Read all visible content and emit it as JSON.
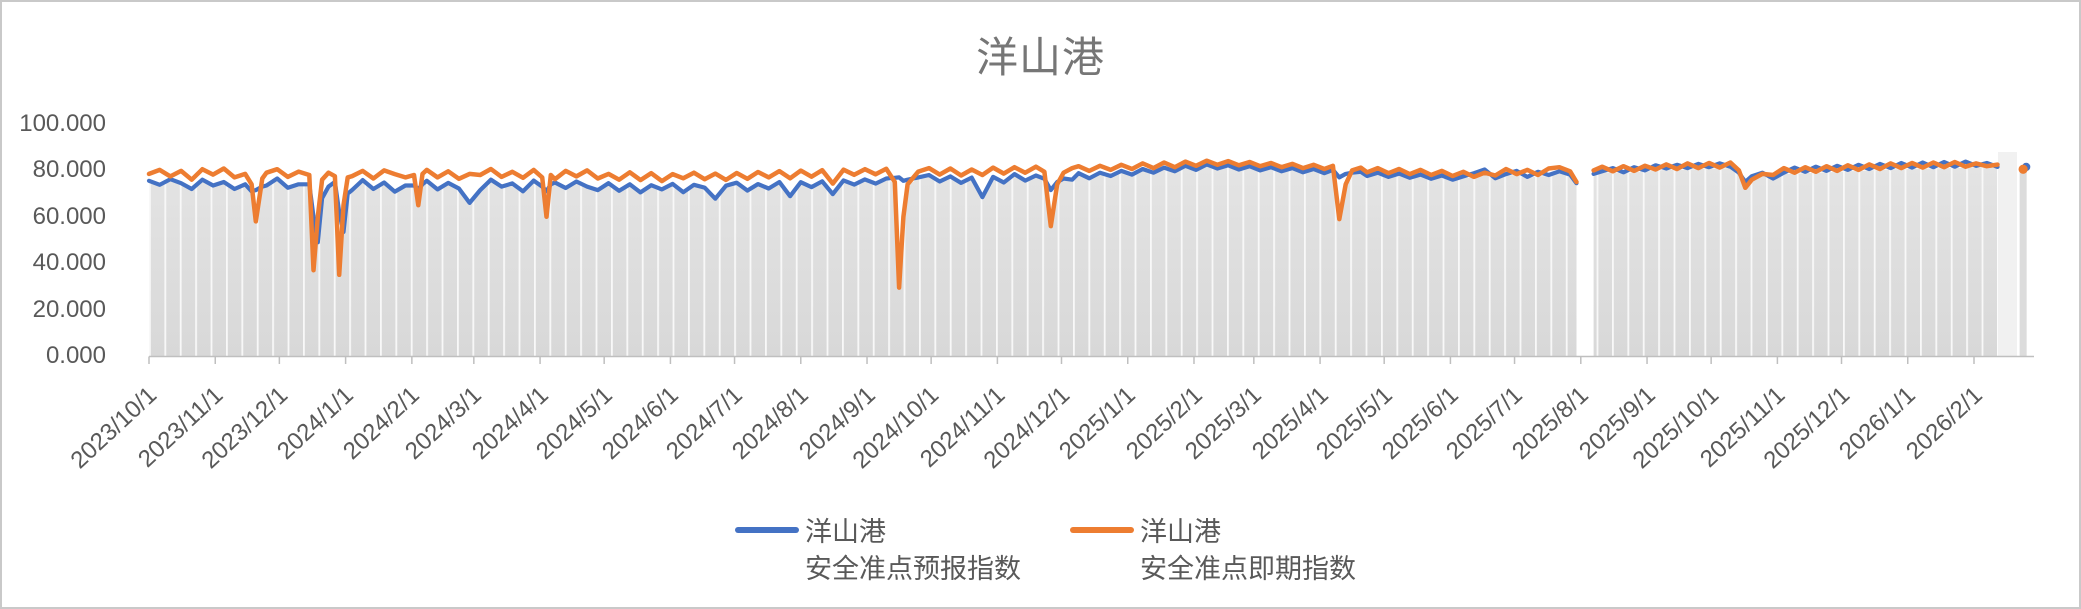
{
  "title": "洋山港",
  "colors": {
    "forecast_blue": "#4472C4",
    "spot_orange": "#ED7D31",
    "title_text": "#767676",
    "axis_text": "#595959",
    "axis_line": "#bfbfbf",
    "area_fill_top": "#e6e6e6",
    "area_fill_bottom": "#d8d8d8",
    "area_stripe": "#f8f8f8",
    "trailing_band": "#f1f1f1",
    "frame_border": "#c9c9c9"
  },
  "chart_data": {
    "type": "line",
    "title": "洋山港",
    "xlabel": "",
    "ylabel": "",
    "ylim": [
      0,
      100
    ],
    "grid": "none",
    "legend_position": "bottom",
    "y_ticks": [
      {
        "label": "0.000",
        "value": 0
      },
      {
        "label": "20.000",
        "value": 20
      },
      {
        "label": "40.000",
        "value": 40
      },
      {
        "label": "60.000",
        "value": 60
      },
      {
        "label": "80.000",
        "value": 80
      },
      {
        "label": "100.000",
        "value": 100
      }
    ],
    "x_ticks": [
      {
        "label": "2023/10/1",
        "day": 0
      },
      {
        "label": "2023/11/1",
        "day": 31
      },
      {
        "label": "2023/12/1",
        "day": 61
      },
      {
        "label": "2024/1/1",
        "day": 92
      },
      {
        "label": "2024/2/1",
        "day": 123
      },
      {
        "label": "2024/3/1",
        "day": 152
      },
      {
        "label": "2024/4/1",
        "day": 183
      },
      {
        "label": "2024/5/1",
        "day": 213
      },
      {
        "label": "2024/6/1",
        "day": 244
      },
      {
        "label": "2024/7/1",
        "day": 274
      },
      {
        "label": "2024/8/1",
        "day": 305
      },
      {
        "label": "2024/9/1",
        "day": 336
      },
      {
        "label": "2024/10/1",
        "day": 366
      },
      {
        "label": "2024/11/1",
        "day": 397
      },
      {
        "label": "2024/12/1",
        "day": 427
      },
      {
        "label": "2025/1/1",
        "day": 458
      },
      {
        "label": "2025/2/1",
        "day": 489
      },
      {
        "label": "2025/3/1",
        "day": 517
      },
      {
        "label": "2025/4/1",
        "day": 548
      },
      {
        "label": "2025/5/1",
        "day": 578
      },
      {
        "label": "2025/6/1",
        "day": 609
      },
      {
        "label": "2025/7/1",
        "day": 639
      },
      {
        "label": "2025/8/1",
        "day": 670
      },
      {
        "label": "2025/9/1",
        "day": 701
      },
      {
        "label": "2025/10/1",
        "day": 731
      },
      {
        "label": "2025/11/1",
        "day": 762
      },
      {
        "label": "2025/12/1",
        "day": 792
      },
      {
        "label": "2026/1/1",
        "day": 823
      },
      {
        "label": "2026/2/1",
        "day": 854
      }
    ],
    "legend": [
      {
        "line1": "洋山港",
        "line2": "安全准点预报指数",
        "color": "#4472C4"
      },
      {
        "line1": "洋山港",
        "line2": "安全准点即期指数",
        "color": "#ED7D31"
      }
    ],
    "series_names": [
      "洋山港 安全准点预报指数",
      "洋山港 安全准点即期指数"
    ],
    "rows_format": [
      "day_since_2023_10_01",
      "forecast_index_blue",
      "spot_index_orange"
    ],
    "rows": [
      [
        0,
        75.5,
        78.5
      ],
      [
        5,
        73.8,
        80.2
      ],
      [
        10,
        76.2,
        77.4
      ],
      [
        15,
        74.5,
        79.8
      ],
      [
        20,
        72,
        76
      ],
      [
        25,
        76,
        80.5
      ],
      [
        30,
        73.5,
        78.2
      ],
      [
        35,
        75,
        80.8
      ],
      [
        40,
        72,
        77
      ],
      [
        45,
        74,
        78.5
      ],
      [
        48,
        71,
        74
      ],
      [
        50,
        71.5,
        58
      ],
      [
        53,
        73,
        76.5
      ],
      [
        55,
        73.5,
        79
      ],
      [
        60,
        76.5,
        80.5
      ],
      [
        65,
        72.5,
        77.2
      ],
      [
        70,
        74,
        79.5
      ],
      [
        75,
        74,
        78
      ],
      [
        77,
        60,
        37
      ],
      [
        79,
        49,
        60
      ],
      [
        81,
        68,
        76
      ],
      [
        84,
        73,
        79
      ],
      [
        87,
        75,
        77.5
      ],
      [
        89,
        62,
        35
      ],
      [
        91,
        53.5,
        65
      ],
      [
        93,
        70,
        77
      ],
      [
        95,
        71.5,
        77.5
      ],
      [
        100,
        75.8,
        79.8
      ],
      [
        105,
        72,
        76.5
      ],
      [
        110,
        74.8,
        80
      ],
      [
        115,
        70.8,
        78.4
      ],
      [
        120,
        73.5,
        77
      ],
      [
        124,
        73.5,
        78
      ],
      [
        126,
        72,
        65
      ],
      [
        128,
        74,
        78.5
      ],
      [
        130,
        75.5,
        80.2
      ],
      [
        135,
        71.8,
        77
      ],
      [
        140,
        74.6,
        79.6
      ],
      [
        145,
        72.2,
        76.4
      ],
      [
        150,
        66,
        78.5
      ],
      [
        155,
        71.5,
        78
      ],
      [
        160,
        76,
        80.6
      ],
      [
        165,
        73,
        77.2
      ],
      [
        170,
        74.4,
        79.4
      ],
      [
        175,
        71,
        76.8
      ],
      [
        180,
        75.6,
        80.2
      ],
      [
        184,
        73,
        77
      ],
      [
        186,
        71,
        60
      ],
      [
        188,
        74,
        78
      ],
      [
        190,
        74.8,
        76.2
      ],
      [
        195,
        72.4,
        79.8
      ],
      [
        200,
        75.2,
        77.4
      ],
      [
        205,
        73,
        80
      ],
      [
        210,
        71.5,
        76.5
      ],
      [
        215,
        74.5,
        78.5
      ],
      [
        220,
        71.2,
        76
      ],
      [
        225,
        74,
        79.2
      ],
      [
        230,
        70.5,
        75.8
      ],
      [
        235,
        73.6,
        78.8
      ],
      [
        240,
        71.8,
        75.4
      ],
      [
        245,
        74.2,
        78.4
      ],
      [
        250,
        70.6,
        76.6
      ],
      [
        255,
        73.8,
        79
      ],
      [
        260,
        72.6,
        76.2
      ],
      [
        265,
        67.8,
        78.6
      ],
      [
        270,
        73.4,
        75.9
      ],
      [
        275,
        74.7,
        78.9
      ],
      [
        280,
        71.3,
        76.4
      ],
      [
        285,
        74.1,
        79.3
      ],
      [
        290,
        72.2,
        77
      ],
      [
        295,
        75,
        79.7
      ],
      [
        300,
        68.9,
        76.6
      ],
      [
        305,
        74.9,
        79.9
      ],
      [
        310,
        72.8,
        77.3
      ],
      [
        315,
        75.3,
        80.1
      ],
      [
        320,
        69.8,
        74.3
      ],
      [
        325,
        75.7,
        80.3
      ],
      [
        330,
        73.9,
        78.1
      ],
      [
        335,
        76.1,
        80.5
      ],
      [
        340,
        74.3,
        78.3
      ],
      [
        345,
        76.5,
        80.7
      ],
      [
        349,
        76.8,
        75
      ],
      [
        351,
        77,
        29.5
      ],
      [
        353,
        75.5,
        60
      ],
      [
        355,
        76,
        74
      ],
      [
        360,
        77,
        79.5
      ],
      [
        365,
        78,
        81
      ],
      [
        370,
        75.2,
        78.2
      ],
      [
        375,
        77.4,
        80.8
      ],
      [
        380,
        74.6,
        77.8
      ],
      [
        385,
        76.9,
        80.4
      ],
      [
        390,
        68.5,
        78
      ],
      [
        395,
        77.2,
        81.2
      ],
      [
        400,
        74.8,
        78.6
      ],
      [
        405,
        78.4,
        81.4
      ],
      [
        410,
        75.6,
        79
      ],
      [
        415,
        77.8,
        81.6
      ],
      [
        419,
        76.4,
        79.4
      ],
      [
        422,
        71.5,
        56
      ],
      [
        425,
        75,
        74
      ],
      [
        428,
        76.5,
        79
      ],
      [
        432,
        76,
        81
      ],
      [
        435,
        78.8,
        81.8
      ],
      [
        440,
        76.6,
        79.8
      ],
      [
        445,
        79,
        82
      ],
      [
        450,
        77.6,
        80.2
      ],
      [
        455,
        79.8,
        82.4
      ],
      [
        460,
        78.2,
        80.6
      ],
      [
        465,
        80.6,
        83
      ],
      [
        470,
        79,
        81
      ],
      [
        475,
        81.2,
        83.4
      ],
      [
        480,
        79.6,
        81.4
      ],
      [
        485,
        82,
        83.8
      ],
      [
        490,
        80.2,
        82
      ],
      [
        495,
        82.6,
        84.2
      ],
      [
        500,
        80.8,
        82.4
      ],
      [
        505,
        82.2,
        84
      ],
      [
        510,
        80.4,
        82.2
      ],
      [
        515,
        81.8,
        83.6
      ],
      [
        520,
        80,
        81.8
      ],
      [
        525,
        81.4,
        83.2
      ],
      [
        530,
        79.6,
        81.4
      ],
      [
        535,
        81,
        82.8
      ],
      [
        540,
        79.2,
        81
      ],
      [
        545,
        80.6,
        82.4
      ],
      [
        550,
        78.8,
        80.6
      ],
      [
        554,
        80.2,
        82
      ],
      [
        557,
        77,
        59
      ],
      [
        560,
        78.5,
        74
      ],
      [
        563,
        79,
        80
      ],
      [
        567,
        79.4,
        81.2
      ],
      [
        570,
        77.6,
        79.2
      ],
      [
        575,
        79,
        81
      ],
      [
        580,
        77.2,
        78.8
      ],
      [
        585,
        78.6,
        80.6
      ],
      [
        590,
        76.8,
        78.4
      ],
      [
        595,
        78.2,
        80.2
      ],
      [
        600,
        76.4,
        78
      ],
      [
        605,
        77.8,
        79.8
      ],
      [
        610,
        76,
        77.6
      ],
      [
        615,
        77.4,
        79.4
      ],
      [
        620,
        78.8,
        77.2
      ],
      [
        625,
        80.4,
        79
      ],
      [
        630,
        76.6,
        77.8
      ],
      [
        635,
        78.4,
        80.6
      ],
      [
        640,
        79.8,
        78.4
      ],
      [
        645,
        77.2,
        80.2
      ],
      [
        650,
        79.4,
        78
      ],
      [
        655,
        78,
        80.8
      ],
      [
        660,
        79.6,
        81.4
      ],
      [
        665,
        78.2,
        79.6
      ],
      [
        668,
        74.5,
        75
      ],
      [
        671,
        null,
        null
      ],
      [
        676,
        78.5,
        80
      ],
      [
        680,
        79.6,
        81.6
      ],
      [
        685,
        81,
        79.6
      ],
      [
        690,
        79.2,
        81.8
      ],
      [
        695,
        81.4,
        79.8
      ],
      [
        700,
        80,
        82
      ],
      [
        705,
        82.2,
        80.4
      ],
      [
        710,
        80.8,
        82.6
      ],
      [
        715,
        82.4,
        80.6
      ],
      [
        720,
        81,
        83
      ],
      [
        725,
        82.8,
        81
      ],
      [
        730,
        81.4,
        83.2
      ],
      [
        735,
        83,
        81.2
      ],
      [
        740,
        81.6,
        83.4
      ],
      [
        744,
        79,
        80
      ],
      [
        747,
        75,
        72.5
      ],
      [
        750,
        77.5,
        76
      ],
      [
        755,
        79,
        78.5
      ],
      [
        760,
        76.5,
        78
      ],
      [
        765,
        79,
        81
      ],
      [
        770,
        81.2,
        79
      ],
      [
        775,
        79.4,
        81.4
      ],
      [
        780,
        81.6,
        79.4
      ],
      [
        785,
        79.8,
        81.8
      ],
      [
        790,
        82,
        79.8
      ],
      [
        795,
        80.2,
        82.2
      ],
      [
        800,
        82.4,
        80.2
      ],
      [
        805,
        80.6,
        82.6
      ],
      [
        810,
        82.8,
        80.6
      ],
      [
        815,
        81,
        83
      ],
      [
        820,
        83.2,
        81
      ],
      [
        825,
        81.2,
        83.2
      ],
      [
        830,
        83.4,
        81.2
      ],
      [
        835,
        81.4,
        83.4
      ],
      [
        840,
        83.6,
        81.4
      ],
      [
        845,
        81.6,
        83.6
      ],
      [
        850,
        83.8,
        81.6
      ],
      [
        855,
        82,
        83
      ],
      [
        860,
        83.2,
        81.8
      ],
      [
        865,
        81.5,
        82.5
      ],
      [
        868,
        null,
        null
      ],
      [
        877,
        81.5,
        80.5
      ]
    ],
    "notes": "null rows = data gap (around 2025/8/1 and before the final isolated point near 2026/2/24)"
  }
}
